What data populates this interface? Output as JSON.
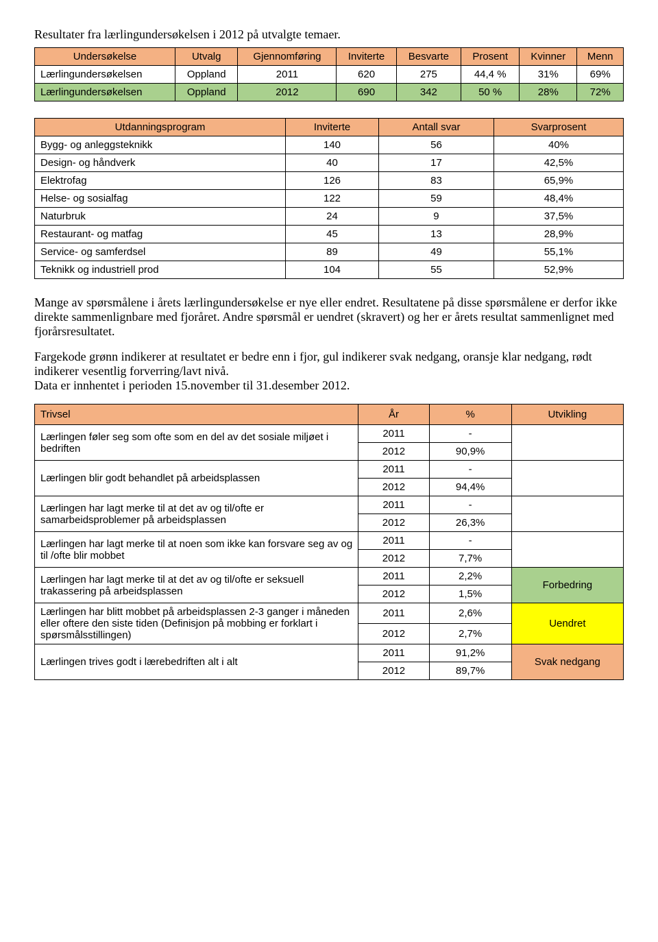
{
  "intro": "Resultater fra lærlingundersøkelsen i 2012 på utvalgte temaer.",
  "table1": {
    "headers": [
      "Undersøkelse",
      "Utvalg",
      "Gjennomføring",
      "Inviterte",
      "Besvarte",
      "Prosent",
      "Kvinner",
      "Menn"
    ],
    "rows": [
      {
        "cells": [
          "Lærlingundersøkelsen",
          "Oppland",
          "2011",
          "620",
          "275",
          "44,4 %",
          "31%",
          "69%"
        ],
        "green": false
      },
      {
        "cells": [
          "Lærlingundersøkelsen",
          "Oppland",
          "2012",
          "690",
          "342",
          "50 %",
          "28%",
          "72%"
        ],
        "green": true
      }
    ]
  },
  "table2": {
    "headers": [
      "Utdanningsprogram",
      "Inviterte",
      "Antall svar",
      "Svarprosent"
    ],
    "rows": [
      [
        "Bygg- og anleggsteknikk",
        "140",
        "56",
        "40%"
      ],
      [
        "Design- og håndverk",
        "40",
        "17",
        "42,5%"
      ],
      [
        "Elektrofag",
        "126",
        "83",
        "65,9%"
      ],
      [
        "Helse- og sosialfag",
        "122",
        "59",
        "48,4%"
      ],
      [
        "Naturbruk",
        "24",
        "9",
        "37,5%"
      ],
      [
        "Restaurant- og matfag",
        "45",
        "13",
        "28,9%"
      ],
      [
        "Service- og samferdsel",
        "89",
        "49",
        "55,1%"
      ],
      [
        "Teknikk og industriell prod",
        "104",
        "55",
        "52,9%"
      ]
    ]
  },
  "para1": "Mange av spørsmålene i årets lærlingundersøkelse er nye eller endret. Resultatene på disse spørsmålene er derfor ikke direkte sammenlignbare med fjoråret. Andre spørsmål er uendret (skravert) og her er årets resultat sammenlignet med fjorårsresultatet.",
  "para2": "Fargekode grønn indikerer at resultatet er bedre enn i fjor, gul indikerer svak nedgang, oransje klar nedgang, rødt indikerer vesentlig forverring/lavt nivå.",
  "para3": "Data er innhentet i perioden 15.november til 31.desember 2012.",
  "table3": {
    "headers": [
      "Trivsel",
      "År",
      "%",
      "Utvikling"
    ],
    "groups": [
      {
        "desc": "Lærlingen føler seg som ofte som en del av det sosiale miljøet i bedriften",
        "rows": [
          [
            "2011",
            "-"
          ],
          [
            "2012",
            "90,9%"
          ]
        ],
        "status": "",
        "statusClass": ""
      },
      {
        "desc": "Lærlingen blir godt behandlet på arbeidsplassen",
        "rows": [
          [
            "2011",
            "-"
          ],
          [
            "2012",
            "94,4%"
          ]
        ],
        "status": "",
        "statusClass": ""
      },
      {
        "desc": "Lærlingen har lagt merke til at det av og til/ofte er samarbeidsproblemer på arbeidsplassen",
        "rows": [
          [
            "2011",
            "-"
          ],
          [
            "2012",
            "26,3%"
          ]
        ],
        "status": "",
        "statusClass": ""
      },
      {
        "desc": "Lærlingen har lagt merke til at noen som ikke kan forsvare seg av og til /ofte blir mobbet",
        "rows": [
          [
            "2011",
            "-"
          ],
          [
            "2012",
            "7,7%"
          ]
        ],
        "status": "",
        "statusClass": ""
      },
      {
        "desc": "Lærlingen har lagt merke til at det av og til/ofte er seksuell trakassering på arbeidsplassen",
        "rows": [
          [
            "2011",
            "2,2%"
          ],
          [
            "2012",
            "1,5%"
          ]
        ],
        "status": "Forbedring",
        "statusClass": "bg-green"
      },
      {
        "desc": "Lærlingen har blitt mobbet på arbeidsplassen 2-3 ganger i måneden eller oftere den siste tiden (Definisjon på mobbing er forklart i spørsmålsstillingen)",
        "rows": [
          [
            "2011",
            "2,6%"
          ],
          [
            "2012",
            "2,7%"
          ]
        ],
        "status": "Uendret",
        "statusClass": "bg-yellow"
      },
      {
        "desc": "Lærlingen trives godt i lærebedriften alt i alt",
        "rows": [
          [
            "2011",
            "91,2%"
          ],
          [
            "2012",
            "89,7%"
          ]
        ],
        "status": "Svak nedgang",
        "statusClass": "bg-orange"
      }
    ]
  },
  "colors": {
    "headerOrange": "#f4b183",
    "rowGreen": "#a9d08e",
    "yellow": "#ffff00"
  }
}
